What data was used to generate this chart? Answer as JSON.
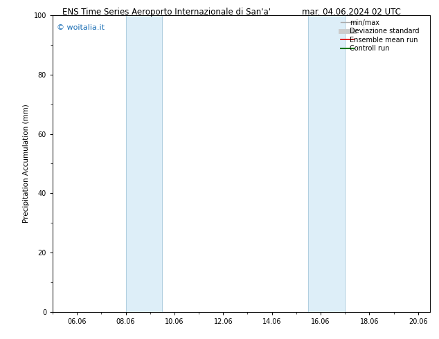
{
  "title_left": "ENS Time Series Aeroporto Internazionale di San'a'",
  "title_right": "mar. 04.06.2024 02 UTC",
  "ylabel": "Precipitation Accumulation (mm)",
  "ylim": [
    0,
    100
  ],
  "xlim_days": [
    5.0,
    20.5
  ],
  "xtick_labels": [
    "06.06",
    "08.06",
    "10.06",
    "12.06",
    "14.06",
    "16.06",
    "18.06",
    "20.06"
  ],
  "xtick_positions": [
    6,
    8,
    10,
    12,
    14,
    16,
    18,
    20
  ],
  "ytick_labels": [
    "0",
    "20",
    "40",
    "60",
    "80",
    "100"
  ],
  "ytick_positions": [
    0,
    20,
    40,
    60,
    80,
    100
  ],
  "shaded_bands": [
    {
      "xmin": 8.0,
      "xmax": 9.5
    },
    {
      "xmin": 15.5,
      "xmax": 17.0
    }
  ],
  "band_color": "#ddeef8",
  "band_edge_color": "#b0cfe0",
  "watermark": "© woitalia.it",
  "watermark_color": "#1a6eb5",
  "legend_items": [
    {
      "label": "min/max",
      "color": "#aaaaaa",
      "lw": 1.0
    },
    {
      "label": "Deviazione standard",
      "color": "#cccccc",
      "lw": 5.0
    },
    {
      "label": "Ensemble mean run",
      "color": "#dd0000",
      "lw": 1.2
    },
    {
      "label": "Controll run",
      "color": "#007700",
      "lw": 1.5
    }
  ],
  "bg_color": "#ffffff",
  "plot_bg_color": "#ffffff",
  "title_fontsize": 8.5,
  "axis_label_fontsize": 7.5,
  "tick_fontsize": 7.0,
  "legend_fontsize": 7.0,
  "watermark_fontsize": 8.0
}
